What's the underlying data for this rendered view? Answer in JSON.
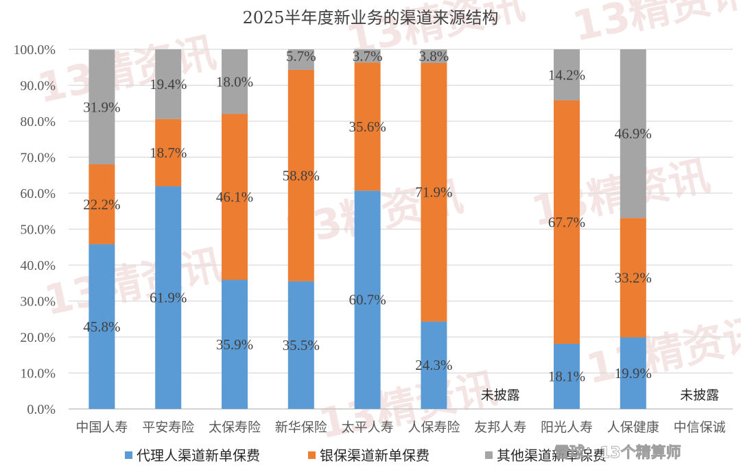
{
  "watermark": {
    "text": "13精资讯"
  },
  "brand": {
    "text": "雪球：13个精算师"
  },
  "not_disclosed_label": "未披露",
  "chart_data": {
    "type": "bar",
    "stacked": true,
    "title": "2025半年度新业务的渠道来源结构",
    "xlabel": "",
    "ylabel": "",
    "ylim": [
      0,
      100
    ],
    "y_ticks": [
      "0.0%",
      "10.0%",
      "20.0%",
      "30.0%",
      "40.0%",
      "50.0%",
      "60.0%",
      "70.0%",
      "80.0%",
      "90.0%",
      "100.0%"
    ],
    "grid": true,
    "legend_position": "bottom",
    "categories": [
      "中国人寿",
      "平安寿险",
      "太保寿险",
      "新华保险",
      "太平人寿",
      "人保寿险",
      "友邦人寿",
      "阳光人寿",
      "人保健康",
      "中信保诚"
    ],
    "series": [
      {
        "name": "代理人渠道新单保费",
        "color": "#5B9BD5",
        "values": [
          45.8,
          61.9,
          35.9,
          35.5,
          60.7,
          24.3,
          null,
          18.1,
          19.9,
          null
        ],
        "labels": [
          "45.8%",
          "61.9%",
          "35.9%",
          "35.5%",
          "60.7%",
          "24.3%",
          null,
          "18.1%",
          "19.9%",
          null
        ]
      },
      {
        "name": "银保渠道新单保费",
        "color": "#ED7D31",
        "values": [
          22.2,
          18.7,
          46.1,
          58.8,
          35.6,
          71.9,
          null,
          67.7,
          33.2,
          null
        ],
        "labels": [
          "22.2%",
          "18.7%",
          "46.1%",
          "58.8%",
          "35.6%",
          "71.9%",
          null,
          "67.7%",
          "33.2%",
          null
        ]
      },
      {
        "name": "其他渠道新单保费",
        "color": "#A5A5A5",
        "values": [
          31.9,
          19.4,
          18.0,
          5.7,
          3.7,
          3.8,
          null,
          14.2,
          46.9,
          null
        ],
        "labels": [
          "31.9%",
          "19.4%",
          "18.0%",
          "5.7%",
          "3.7%",
          "3.8%",
          null,
          "14.2%",
          "46.9%",
          null
        ]
      }
    ]
  }
}
